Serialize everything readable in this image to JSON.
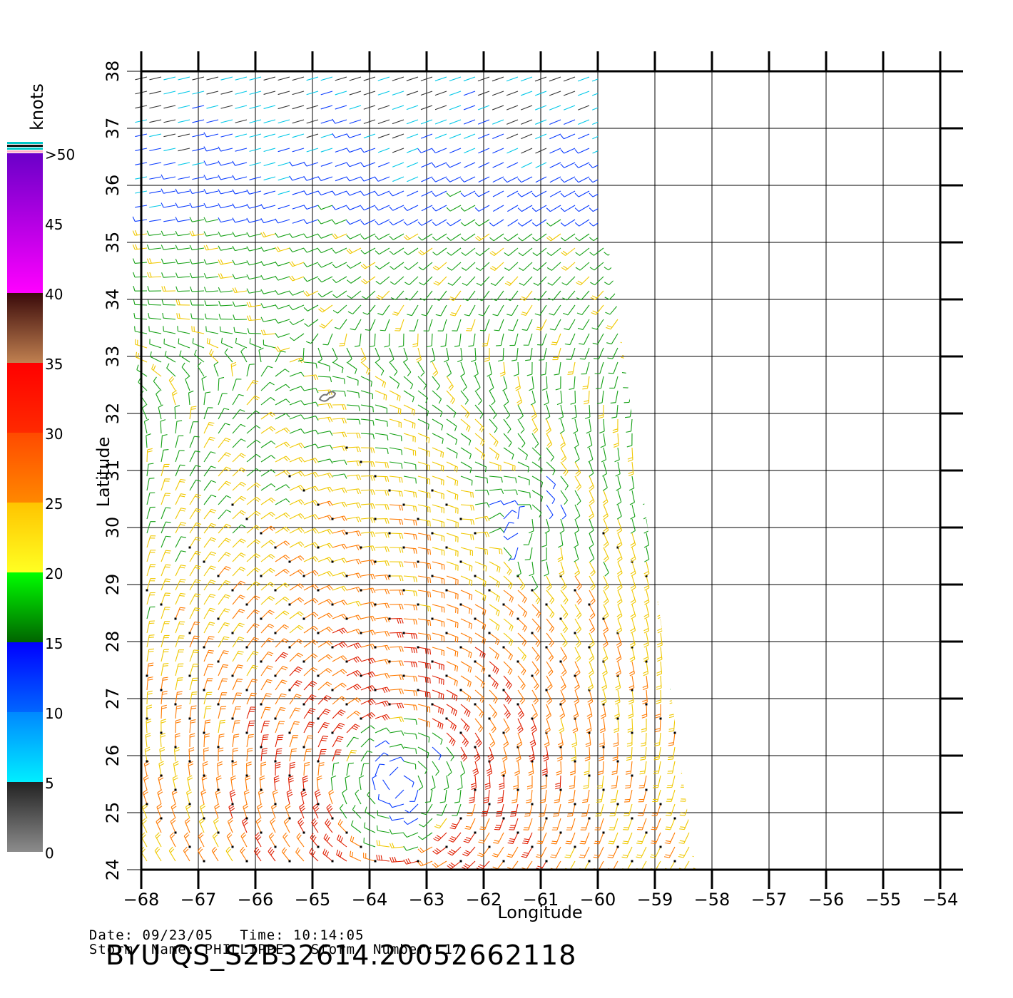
{
  "map": {
    "lon_range": [
      -68,
      -54
    ],
    "lat_range": [
      24,
      38
    ],
    "grid_step_deg": 1,
    "x_ticks": [
      "−68",
      "−67",
      "−66",
      "−65",
      "−64",
      "−63",
      "−62",
      "−61",
      "−60",
      "−59",
      "−58",
      "−57",
      "−56",
      "−55",
      "−54"
    ],
    "y_ticks": [
      "24",
      "25",
      "26",
      "27",
      "28",
      "29",
      "30",
      "31",
      "32",
      "33",
      "34",
      "35",
      "36",
      "37",
      "38"
    ],
    "x_label": "Longitude",
    "y_label": "Latitude",
    "storm_center_approx": {
      "lon": -63.5,
      "lat": 25.5
    },
    "secondary_circulation_approx": {
      "lon": -61.3,
      "lat": 30.2
    },
    "grey_contour_approx": {
      "lon": -64.75,
      "lat": 32.3
    }
  },
  "legend": {
    "unit_label": "knots",
    "bands": [
      {
        "from": 0,
        "to": 5,
        "colors": [
          "#8c8c8c",
          "#222222"
        ]
      },
      {
        "from": 5,
        "to": 10,
        "colors": [
          "#00eeff",
          "#0088ff"
        ]
      },
      {
        "from": 10,
        "to": 15,
        "colors": [
          "#0066ff",
          "#0000ff"
        ]
      },
      {
        "from": 15,
        "to": 20,
        "colors": [
          "#006400",
          "#00ff00"
        ]
      },
      {
        "from": 20,
        "to": 25,
        "colors": [
          "#ffff22",
          "#ffc400"
        ]
      },
      {
        "from": 25,
        "to": 30,
        "colors": [
          "#ff8800",
          "#ff4a00"
        ]
      },
      {
        "from": 30,
        "to": 35,
        "colors": [
          "#ff2a00",
          "#ff0000"
        ]
      },
      {
        "from": 35,
        "to": 40,
        "colors": [
          "#c08050",
          "#3a0a0a"
        ]
      },
      {
        "from": 40,
        "to": 50,
        "colors": [
          "#ff00ff",
          "#6a00c8"
        ]
      }
    ],
    "tick_labels": [
      {
        "value": 0,
        "label": "0"
      },
      {
        "value": 5,
        "label": "5"
      },
      {
        "value": 10,
        "label": "10"
      },
      {
        "value": 15,
        "label": "15"
      },
      {
        "value": 20,
        "label": "20"
      },
      {
        "value": 25,
        "label": "25"
      },
      {
        "value": 30,
        "label": "30"
      },
      {
        "value": 35,
        "label": "35"
      },
      {
        "value": 40,
        "label": "40"
      },
      {
        "value": 45,
        "label": "45"
      },
      {
        "value": 50,
        "label": ">50"
      }
    ],
    "top_stripes": [
      "#00c8c8",
      "#111111",
      "#00c8c8",
      "#ffb0c8"
    ]
  },
  "info": {
    "date_label": "Date:",
    "date": "09/23/05",
    "time_label": "Time:",
    "time": "10:14:05",
    "storm_name_label": "Storm  Name:",
    "storm_name": "PHILLIPPE",
    "storm_number_label": "Storm  Number:",
    "storm_number": "17"
  },
  "title": "BYU  QS_S2B32614.20052662118"
}
